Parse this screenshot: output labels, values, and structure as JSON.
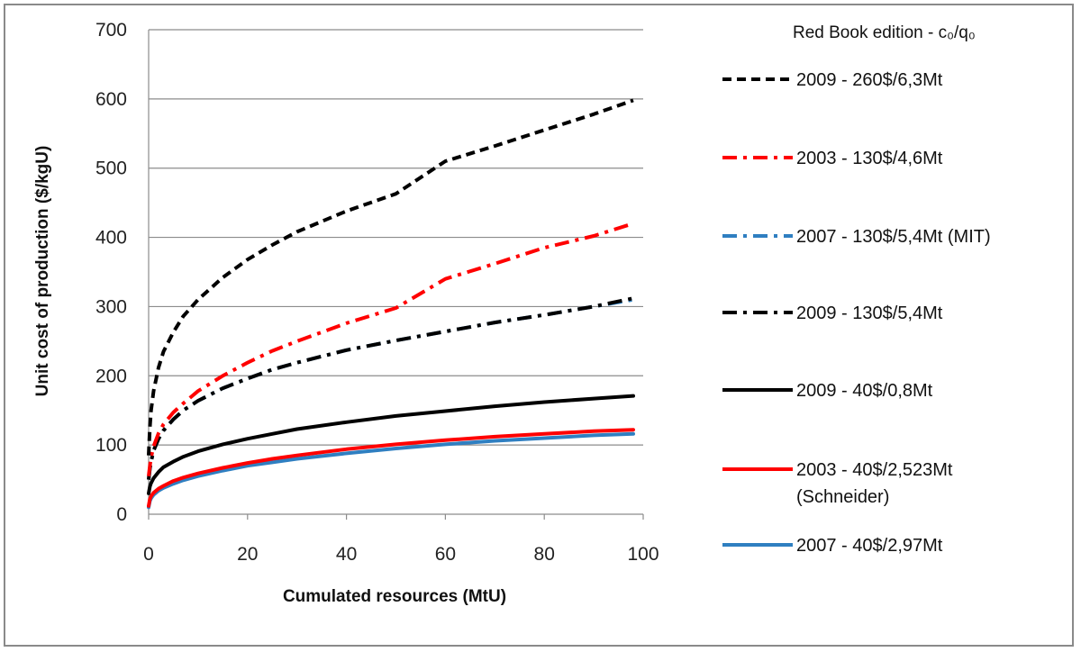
{
  "chart_data": {
    "type": "line",
    "title": "",
    "xlabel": "Cumulated resources (MtU)",
    "ylabel": "Unit cost of production ($/kgU)",
    "xlim": [
      0,
      100
    ],
    "ylim": [
      0,
      700
    ],
    "xticks": [
      "0",
      "20",
      "40",
      "60",
      "80",
      "100"
    ],
    "yticks": [
      "0",
      "100",
      "200",
      "300",
      "400",
      "500",
      "600",
      "700"
    ],
    "grid": "horizontal",
    "legend_title": "Red Book edition - c₀/q₀",
    "legend_position": "right",
    "x": [
      0,
      0.25,
      0.5,
      1,
      2,
      3,
      5,
      7,
      10,
      15,
      20,
      25,
      30,
      40,
      50,
      60,
      70,
      80,
      90,
      98
    ],
    "series": [
      {
        "name": "2009 - 260$/6,3Mt",
        "lines": [
          "2009 - 260$/6,3Mt"
        ],
        "color": "#000000",
        "dash": "dash",
        "values": [
          85,
          126,
          150,
          178,
          212,
          235,
          263,
          286,
          310,
          342,
          368,
          389,
          408,
          438,
          463,
          510,
          532,
          555,
          578,
          598
        ]
      },
      {
        "name": "2003 - 130$/4,6Mt",
        "lines": [
          "2003 - 130$/4,6Mt"
        ],
        "color": "#ff0000",
        "dash": "dashdot",
        "values": [
          55,
          70,
          82,
          98,
          117,
          130,
          147,
          160,
          178,
          200,
          219,
          236,
          250,
          276,
          298,
          340,
          362,
          385,
          402,
          420
        ]
      },
      {
        "name": "2007 - 130$/5,4Mt (MIT)",
        "lines": [
          "2007 - 130$/5,4Mt (MIT)"
        ],
        "color": "#2f7fc1",
        "dash": "dashdot",
        "values": [
          50,
          66,
          76,
          92,
          109,
          121,
          137,
          150,
          164,
          182,
          196,
          209,
          219,
          237,
          251,
          264,
          277,
          288,
          300,
          310
        ]
      },
      {
        "name": "2009 - 130$/5,4Mt",
        "lines": [
          "2009 - 130$/5,4Mt"
        ],
        "color": "#000000",
        "dash": "dashdot",
        "values": [
          50,
          66,
          76,
          92,
          109,
          121,
          137,
          150,
          164,
          182,
          196,
          209,
          219,
          237,
          251,
          264,
          277,
          288,
          300,
          312
        ]
      },
      {
        "name": "2009 - 40$/0,8Mt",
        "lines": [
          "2009 - 40$/0,8Mt"
        ],
        "color": "#000000",
        "dash": "solid",
        "values": [
          30,
          40,
          45,
          52,
          61,
          68,
          76,
          83,
          91,
          101,
          109,
          116,
          123,
          133,
          142,
          149,
          156,
          162,
          167,
          171
        ]
      },
      {
        "name": "2003 - 40$/2,523Mt (Schneider)",
        "lines": [
          "2003 - 40$/2,523Mt",
          "(Schneider)"
        ],
        "color": "#ff0000",
        "dash": "solid",
        "values": [
          12,
          22,
          26,
          31,
          37,
          41,
          48,
          53,
          59,
          67,
          74,
          80,
          85,
          94,
          101,
          107,
          112,
          116,
          120,
          122
        ]
      },
      {
        "name": "2007 - 40$/2,97Mt",
        "lines": [
          "2007 - 40$/2,97Mt"
        ],
        "color": "#2f7fc1",
        "dash": "solid",
        "values": [
          10,
          19,
          23,
          28,
          34,
          38,
          44,
          49,
          55,
          63,
          70,
          75,
          80,
          88,
          95,
          101,
          106,
          110,
          114,
          116
        ]
      }
    ]
  }
}
